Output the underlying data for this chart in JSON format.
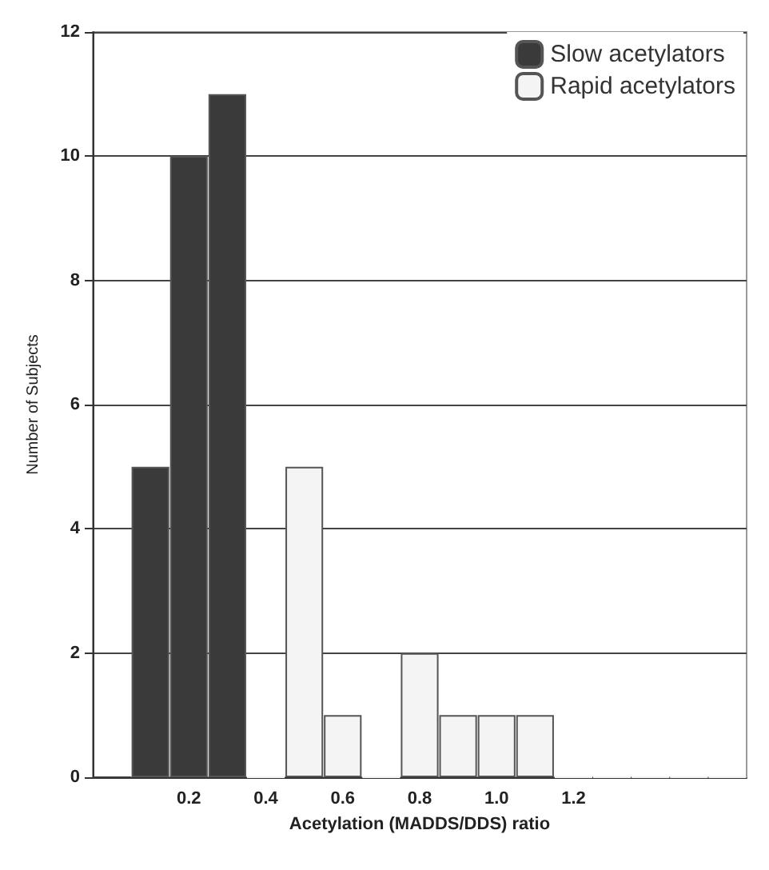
{
  "chart_data": {
    "type": "bar",
    "xlabel": "Acetylation (MADDS/DDS) ratio",
    "ylabel": "Number of Subjects",
    "categories": [
      null,
      null,
      "0.2",
      null,
      "0.4",
      null,
      "0.6",
      null,
      "0.8",
      null,
      "1.0",
      null,
      "1.2",
      null,
      null,
      null,
      null
    ],
    "series": [
      {
        "name": "Slow acetylators",
        "color": "#3a3a3a",
        "values": [
          0,
          5,
          10,
          11,
          null,
          null,
          null,
          null,
          null,
          null,
          null,
          null,
          null,
          null,
          null,
          null,
          null
        ]
      },
      {
        "name": "Rapid acetylators",
        "color": "#f4f4f4",
        "values": [
          null,
          null,
          null,
          null,
          0,
          5,
          1,
          0,
          2,
          1,
          1,
          1,
          0,
          0,
          0,
          0,
          0
        ]
      }
    ],
    "ylim": [
      0,
      12
    ],
    "yticks": [
      0,
      2,
      4,
      6,
      8,
      10,
      12
    ],
    "grid": "y",
    "legend": "top right"
  }
}
